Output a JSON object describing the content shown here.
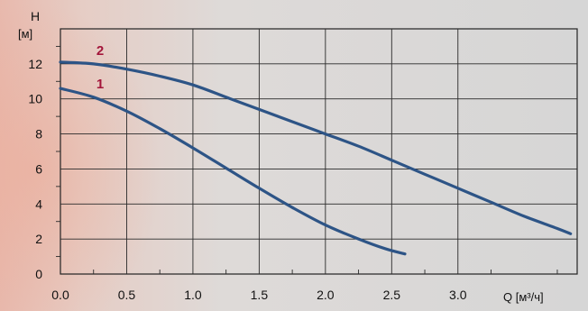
{
  "chart_data": {
    "type": "line",
    "ylabel_symbol": "H",
    "ylabel_unit": "[м]",
    "xlabel": "Q [м³/ч]",
    "xlim": [
      0,
      3.9
    ],
    "ylim": [
      0,
      14
    ],
    "x_ticks": [
      "0.0",
      "0.5",
      "1.0",
      "1.5",
      "2.0",
      "2.5",
      "3.0"
    ],
    "y_ticks": [
      "0",
      "2",
      "4",
      "6",
      "8",
      "10",
      "12"
    ],
    "grid": true,
    "series_color": "#2d5486",
    "label_color": "#a3153a",
    "series": [
      {
        "name": "1",
        "points": [
          [
            0.0,
            10.6
          ],
          [
            0.25,
            10.1
          ],
          [
            0.5,
            9.3
          ],
          [
            0.75,
            8.3
          ],
          [
            1.0,
            7.2
          ],
          [
            1.25,
            6.05
          ],
          [
            1.5,
            4.9
          ],
          [
            1.75,
            3.8
          ],
          [
            2.0,
            2.8
          ],
          [
            2.25,
            2.0
          ],
          [
            2.45,
            1.45
          ],
          [
            2.6,
            1.15
          ]
        ]
      },
      {
        "name": "2",
        "points": [
          [
            0.0,
            12.1
          ],
          [
            0.25,
            12.0
          ],
          [
            0.5,
            11.7
          ],
          [
            0.75,
            11.3
          ],
          [
            1.0,
            10.8
          ],
          [
            1.25,
            10.1
          ],
          [
            1.5,
            9.4
          ],
          [
            1.75,
            8.7
          ],
          [
            2.0,
            8.0
          ],
          [
            2.25,
            7.3
          ],
          [
            2.5,
            6.5
          ],
          [
            2.75,
            5.7
          ],
          [
            3.0,
            4.9
          ],
          [
            3.25,
            4.1
          ],
          [
            3.5,
            3.3
          ],
          [
            3.75,
            2.6
          ],
          [
            3.85,
            2.3
          ]
        ]
      }
    ]
  }
}
